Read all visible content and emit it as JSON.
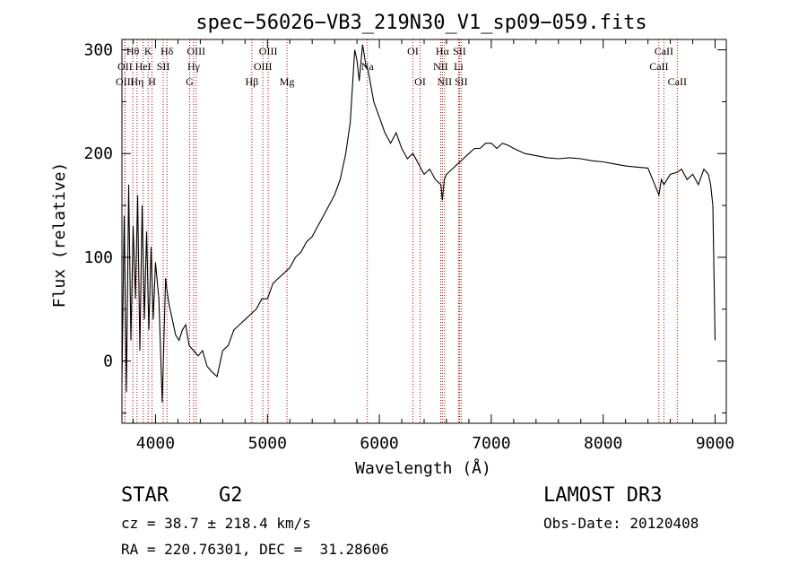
{
  "chart_data": {
    "type": "line",
    "title": "spec−56026−VB3_219N30_V1_sp09−059.fits",
    "xlabel": "Wavelength (Å)",
    "ylabel": "Flux (relative)",
    "xlim": [
      3700,
      9100
    ],
    "ylim": [
      -60,
      310
    ],
    "xticks": [
      4000,
      5000,
      6000,
      7000,
      8000,
      9000
    ],
    "yticks": [
      0,
      100,
      200,
      300
    ],
    "series": [
      {
        "name": "flux",
        "x": [
          3700,
          3720,
          3740,
          3760,
          3780,
          3800,
          3820,
          3840,
          3860,
          3880,
          3900,
          3920,
          3940,
          3960,
          3980,
          4000,
          4030,
          4060,
          4090,
          4100,
          4120,
          4150,
          4180,
          4210,
          4240,
          4270,
          4300,
          4340,
          4380,
          4420,
          4460,
          4500,
          4550,
          4600,
          4650,
          4700,
          4750,
          4800,
          4850,
          4900,
          4950,
          5000,
          5050,
          5100,
          5150,
          5200,
          5250,
          5300,
          5350,
          5400,
          5450,
          5500,
          5550,
          5600,
          5650,
          5700,
          5740,
          5780,
          5800,
          5820,
          5850,
          5880,
          5900,
          5950,
          6000,
          6050,
          6100,
          6150,
          6200,
          6250,
          6300,
          6350,
          6400,
          6450,
          6500,
          6550,
          6563,
          6580,
          6600,
          6650,
          6700,
          6750,
          6800,
          6850,
          6900,
          6950,
          7000,
          7050,
          7100,
          7150,
          7200,
          7300,
          7400,
          7500,
          7600,
          7700,
          7800,
          7900,
          8000,
          8100,
          8200,
          8300,
          8400,
          8498,
          8520,
          8542,
          8600,
          8662,
          8700,
          8750,
          8800,
          8850,
          8900,
          8940,
          8960,
          8980,
          9000
        ],
        "y": [
          -20,
          140,
          -30,
          170,
          20,
          130,
          60,
          160,
          10,
          150,
          40,
          125,
          30,
          110,
          40,
          95,
          60,
          -40,
          80,
          70,
          55,
          40,
          25,
          20,
          30,
          35,
          15,
          10,
          5,
          10,
          -5,
          -10,
          -15,
          10,
          15,
          30,
          35,
          40,
          45,
          50,
          60,
          60,
          75,
          80,
          85,
          90,
          100,
          105,
          115,
          120,
          130,
          140,
          150,
          160,
          175,
          200,
          230,
          300,
          290,
          270,
          305,
          285,
          280,
          250,
          235,
          220,
          210,
          220,
          205,
          195,
          200,
          190,
          180,
          185,
          175,
          170,
          155,
          175,
          180,
          185,
          190,
          195,
          200,
          205,
          205,
          210,
          210,
          205,
          210,
          208,
          205,
          200,
          198,
          196,
          195,
          196,
          195,
          193,
          192,
          190,
          188,
          187,
          186,
          160,
          175,
          170,
          180,
          182,
          185,
          175,
          180,
          170,
          185,
          180,
          170,
          150,
          20
        ]
      }
    ],
    "lines": [
      {
        "label": "Hθ",
        "wl": 3797,
        "row": 1
      },
      {
        "label": "OII",
        "wl": 3727,
        "row": 2
      },
      {
        "label": "OIII",
        "wl": 3727,
        "row": 3
      },
      {
        "label": "K",
        "wl": 3934,
        "row": 1
      },
      {
        "label": "HeI",
        "wl": 3889,
        "row": 2
      },
      {
        "label": "Hη",
        "wl": 3835,
        "row": 3
      },
      {
        "label": "H",
        "wl": 3969,
        "row": 3
      },
      {
        "label": "Hδ",
        "wl": 4102,
        "row": 1
      },
      {
        "label": "SII",
        "wl": 4069,
        "row": 2
      },
      {
        "label": "OIII",
        "wl": 4363,
        "row": 1
      },
      {
        "label": "Hγ",
        "wl": 4341,
        "row": 2
      },
      {
        "label": "G",
        "wl": 4305,
        "row": 3
      },
      {
        "label": "Hβ",
        "wl": 4861,
        "row": 3
      },
      {
        "label": "OIII",
        "wl": 5007,
        "row": 1
      },
      {
        "label": "OIII",
        "wl": 4959,
        "row": 2
      },
      {
        "label": "Mg",
        "wl": 5175,
        "row": 3
      },
      {
        "label": "Na",
        "wl": 5893,
        "row": 2
      },
      {
        "label": "OI",
        "wl": 6300,
        "row": 1
      },
      {
        "label": "OI",
        "wl": 6364,
        "row": 3
      },
      {
        "label": "Hα",
        "wl": 6563,
        "row": 1
      },
      {
        "label": "SII",
        "wl": 6716,
        "row": 1
      },
      {
        "label": "NII",
        "wl": 6548,
        "row": 2
      },
      {
        "label": "Li",
        "wl": 6708,
        "row": 2
      },
      {
        "label": "NII",
        "wl": 6583,
        "row": 3
      },
      {
        "label": "SII",
        "wl": 6731,
        "row": 3
      },
      {
        "label": "CaII",
        "wl": 8542,
        "row": 1
      },
      {
        "label": "CaII",
        "wl": 8498,
        "row": 2
      },
      {
        "label": "CaII",
        "wl": 8662,
        "row": 3
      }
    ]
  },
  "info": {
    "object_class": "STAR",
    "subclass": "G2",
    "survey": "LAMOST DR3",
    "cz": "cz = 38.7 ± 218.4 km/s",
    "obs_date": "Obs-Date: 20120408",
    "radec": "RA = 220.76301, DEC =  31.28606"
  }
}
